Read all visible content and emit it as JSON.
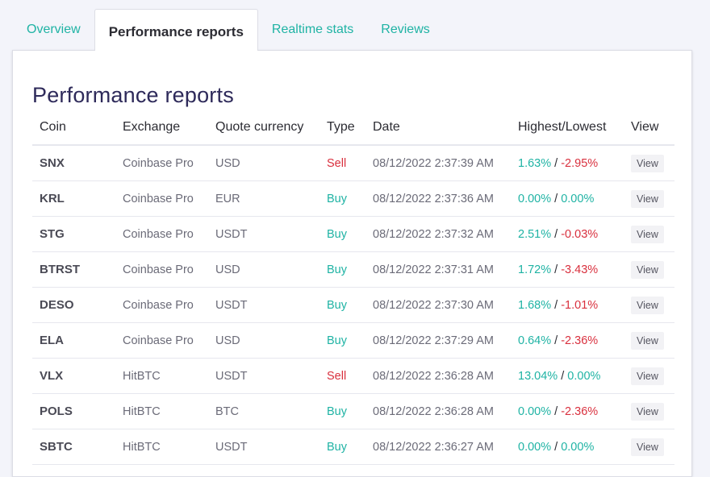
{
  "tabs": [
    {
      "label": "Overview"
    },
    {
      "label": "Performance reports"
    },
    {
      "label": "Realtime stats"
    },
    {
      "label": "Reviews"
    }
  ],
  "page_title": "Performance reports",
  "table": {
    "columns": [
      "Coin",
      "Exchange",
      "Quote currency",
      "Type",
      "Date",
      "Highest/Lowest",
      "View"
    ],
    "separator": "/",
    "rows": [
      {
        "coin": "SNX",
        "exchange": "Coinbase Pro",
        "quote": "USD",
        "type": "Sell",
        "date": "08/12/2022 2:37:39 AM",
        "highest": "1.63%",
        "lowest": "-2.95%",
        "view": "View"
      },
      {
        "coin": "KRL",
        "exchange": "Coinbase Pro",
        "quote": "EUR",
        "type": "Buy",
        "date": "08/12/2022 2:37:36 AM",
        "highest": "0.00%",
        "lowest": "0.00%",
        "view": "View"
      },
      {
        "coin": "STG",
        "exchange": "Coinbase Pro",
        "quote": "USDT",
        "type": "Buy",
        "date": "08/12/2022 2:37:32 AM",
        "highest": "2.51%",
        "lowest": "-0.03%",
        "view": "View"
      },
      {
        "coin": "BTRST",
        "exchange": "Coinbase Pro",
        "quote": "USD",
        "type": "Buy",
        "date": "08/12/2022 2:37:31 AM",
        "highest": "1.72%",
        "lowest": "-3.43%",
        "view": "View"
      },
      {
        "coin": "DESO",
        "exchange": "Coinbase Pro",
        "quote": "USDT",
        "type": "Buy",
        "date": "08/12/2022 2:37:30 AM",
        "highest": "1.68%",
        "lowest": "-1.01%",
        "view": "View"
      },
      {
        "coin": "ELA",
        "exchange": "Coinbase Pro",
        "quote": "USD",
        "type": "Buy",
        "date": "08/12/2022 2:37:29 AM",
        "highest": "0.64%",
        "lowest": "-2.36%",
        "view": "View"
      },
      {
        "coin": "VLX",
        "exchange": "HitBTC",
        "quote": "USDT",
        "type": "Sell",
        "date": "08/12/2022 2:36:28 AM",
        "highest": "13.04%",
        "lowest": "0.00%",
        "view": "View"
      },
      {
        "coin": "POLS",
        "exchange": "HitBTC",
        "quote": "BTC",
        "type": "Buy",
        "date": "08/12/2022 2:36:28 AM",
        "highest": "0.00%",
        "lowest": "-2.36%",
        "view": "View"
      },
      {
        "coin": "SBTC",
        "exchange": "HitBTC",
        "quote": "USDT",
        "type": "Buy",
        "date": "08/12/2022 2:36:27 AM",
        "highest": "0.00%",
        "lowest": "0.00%",
        "view": "View"
      }
    ]
  },
  "colors": {
    "accent": "#1fb3a4",
    "negative": "#d9303e",
    "title": "#2e2a5a"
  }
}
